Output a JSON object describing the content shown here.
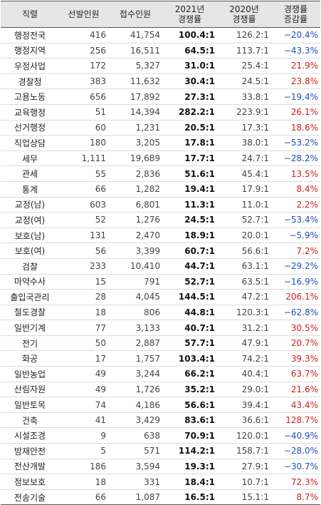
{
  "headers": {
    "name": "직렬",
    "selected": "선발인원",
    "applicants": "접수인원",
    "rate_2021_line1": "2021년",
    "rate_2021_line2": "경쟁률",
    "rate_2020_line1": "2020년",
    "rate_2020_line2": "경쟁률",
    "change_line1": "경쟁률",
    "change_line2": "증감률"
  },
  "rows": [
    {
      "name": "행정전국",
      "selected": "416",
      "applicants": "41,754",
      "rate_2021": "100.4:1",
      "rate_2020": "126.2:1",
      "change": "−20.4%",
      "trend": "down"
    },
    {
      "name": "행정지역",
      "selected": "256",
      "applicants": "16,511",
      "rate_2021": "64.5:1",
      "rate_2020": "113.7:1",
      "change": "−43.3%",
      "trend": "down"
    },
    {
      "name": "우정사업",
      "selected": "172",
      "applicants": "5,327",
      "rate_2021": "31.0:1",
      "rate_2020": "25.4:1",
      "change": "21.9%",
      "trend": "up"
    },
    {
      "name": "경찰청",
      "selected": "383",
      "applicants": "11,632",
      "rate_2021": "30.4:1",
      "rate_2020": "24.5:1",
      "change": "23.8%",
      "trend": "up"
    },
    {
      "name": "고용노동",
      "selected": "656",
      "applicants": "17,892",
      "rate_2021": "27.3:1",
      "rate_2020": "33.8:1",
      "change": "−19.4%",
      "trend": "down"
    },
    {
      "name": "교육행정",
      "selected": "51",
      "applicants": "14,394",
      "rate_2021": "282.2:1",
      "rate_2020": "223.9:1",
      "change": "26.1%",
      "trend": "up"
    },
    {
      "name": "선거행정",
      "selected": "60",
      "applicants": "1,231",
      "rate_2021": "20.5:1",
      "rate_2020": "17.3:1",
      "change": "18.6%",
      "trend": "up"
    },
    {
      "name": "직업상담",
      "selected": "180",
      "applicants": "3,205",
      "rate_2021": "17.8:1",
      "rate_2020": "38.0:1",
      "change": "−53.2%",
      "trend": "down"
    },
    {
      "name": "세무",
      "selected": "1,111",
      "applicants": "19,689",
      "rate_2021": "17.7:1",
      "rate_2020": "24.7:1",
      "change": "−28.2%",
      "trend": "down"
    },
    {
      "name": "관세",
      "selected": "55",
      "applicants": "2,836",
      "rate_2021": "51.6:1",
      "rate_2020": "45.4:1",
      "change": "13.5%",
      "trend": "up"
    },
    {
      "name": "통계",
      "selected": "66",
      "applicants": "1,282",
      "rate_2021": "19.4:1",
      "rate_2020": "17.9:1",
      "change": "8.4%",
      "trend": "up"
    },
    {
      "name": "교정(남)",
      "selected": "603",
      "applicants": "6,801",
      "rate_2021": "11.3:1",
      "rate_2020": "11.0:1",
      "change": "2.2%",
      "trend": "up"
    },
    {
      "name": "교정(여)",
      "selected": "52",
      "applicants": "1,276",
      "rate_2021": "24.5:1",
      "rate_2020": "52.7:1",
      "change": "−53.4%",
      "trend": "down"
    },
    {
      "name": "보호(남)",
      "selected": "131",
      "applicants": "2,470",
      "rate_2021": "18.9:1",
      "rate_2020": "20.0:1",
      "change": "−5.9%",
      "trend": "down"
    },
    {
      "name": "보호(여)",
      "selected": "56",
      "applicants": "3,399",
      "rate_2021": "60.7:1",
      "rate_2020": "56.6:1",
      "change": "7.2%",
      "trend": "up"
    },
    {
      "name": "검찰",
      "selected": "233",
      "applicants": "10,410",
      "rate_2021": "44.7:1",
      "rate_2020": "63.1:1",
      "change": "−29.2%",
      "trend": "down"
    },
    {
      "name": "마약수사",
      "selected": "15",
      "applicants": "791",
      "rate_2021": "52.7:1",
      "rate_2020": "63.5:1",
      "change": "−16.9%",
      "trend": "down"
    },
    {
      "name": "출입국관리",
      "selected": "28",
      "applicants": "4,045",
      "rate_2021": "144.5:1",
      "rate_2020": "47.2:1",
      "change": "206.1%",
      "trend": "up"
    },
    {
      "name": "철도경찰",
      "selected": "18",
      "applicants": "806",
      "rate_2021": "44.8:1",
      "rate_2020": "120.3:1",
      "change": "−62.8%",
      "trend": "down"
    },
    {
      "name": "일반기계",
      "selected": "77",
      "applicants": "3,133",
      "rate_2021": "40.7:1",
      "rate_2020": "31.2:1",
      "change": "30.5%",
      "trend": "up"
    },
    {
      "name": "전기",
      "selected": "50",
      "applicants": "2,887",
      "rate_2021": "57.7:1",
      "rate_2020": "47.9:1",
      "change": "20.7%",
      "trend": "up"
    },
    {
      "name": "화공",
      "selected": "17",
      "applicants": "1,757",
      "rate_2021": "103.4:1",
      "rate_2020": "74.2:1",
      "change": "39.3%",
      "trend": "up"
    },
    {
      "name": "일반농업",
      "selected": "49",
      "applicants": "3,244",
      "rate_2021": "66.2:1",
      "rate_2020": "40.4:1",
      "change": "63.7%",
      "trend": "up"
    },
    {
      "name": "산림자원",
      "selected": "49",
      "applicants": "1,726",
      "rate_2021": "35.2:1",
      "rate_2020": "29.0:1",
      "change": "21.6%",
      "trend": "up"
    },
    {
      "name": "일반토목",
      "selected": "74",
      "applicants": "4,186",
      "rate_2021": "56.6:1",
      "rate_2020": "39.4:1",
      "change": "43.4%",
      "trend": "up"
    },
    {
      "name": "건축",
      "selected": "41",
      "applicants": "3,429",
      "rate_2021": "83.6:1",
      "rate_2020": "36.6:1",
      "change": "128.7%",
      "trend": "up"
    },
    {
      "name": "시설조경",
      "selected": "9",
      "applicants": "638",
      "rate_2021": "70.9:1",
      "rate_2020": "120.0:1",
      "change": "−40.9%",
      "trend": "down"
    },
    {
      "name": "방재안전",
      "selected": "5",
      "applicants": "571",
      "rate_2021": "114.2:1",
      "rate_2020": "158.7:1",
      "change": "−28.0%",
      "trend": "down"
    },
    {
      "name": "전산개발",
      "selected": "186",
      "applicants": "3,594",
      "rate_2021": "19.3:1",
      "rate_2020": "27.9:1",
      "change": "−30.7%",
      "trend": "down"
    },
    {
      "name": "정보보호",
      "selected": "18",
      "applicants": "331",
      "rate_2021": "18.4:1",
      "rate_2020": "10.7:1",
      "change": "72.3%",
      "trend": "up"
    },
    {
      "name": "전송기술",
      "selected": "66",
      "applicants": "1,087",
      "rate_2021": "16.5:1",
      "rate_2020": "15.1:1",
      "change": "8.7%",
      "trend": "up"
    }
  ],
  "colors": {
    "header_bg": "#e6e6e6",
    "increase": "#d61c1c",
    "decrease": "#1f4fbf"
  }
}
